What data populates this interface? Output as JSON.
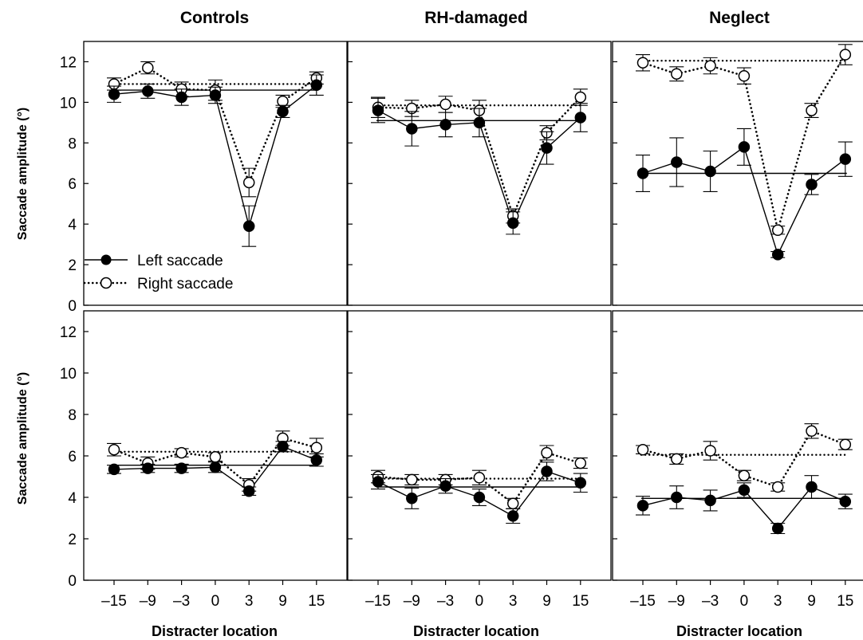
{
  "figure": {
    "column_titles": [
      "Controls",
      "RH-damaged",
      "Neglect"
    ],
    "xlabel": "Distracter location",
    "ylabel": "Saccade amplitude (°)"
  },
  "legend": {
    "left_label": "Left saccade",
    "right_label": "Right saccade"
  },
  "chart_data": {
    "type": "line",
    "x_ticks": [
      "–15",
      "–9",
      "–3",
      "0",
      "3",
      "9",
      "15"
    ],
    "y_ticks": [
      "0",
      "2",
      "4",
      "6",
      "8",
      "10",
      "12"
    ],
    "ylim": [
      0,
      13
    ],
    "grid": false,
    "legend_position": "bottom-left of top-left panel",
    "categories": [
      -15,
      -9,
      -3,
      0,
      3,
      9,
      15
    ],
    "panels": [
      {
        "column": "Controls",
        "row": "top",
        "series": [
          {
            "name": "Left saccade",
            "style": "solid-filled",
            "values": [
              10.4,
              10.55,
              10.25,
              10.35,
              3.9,
              9.55,
              10.85
            ],
            "errors": [
              0.4,
              0.35,
              0.4,
              0.4,
              1.0,
              0.3,
              0.5
            ],
            "baseline": 10.6
          },
          {
            "name": "Right saccade",
            "style": "dotted-open",
            "values": [
              10.9,
              11.7,
              10.65,
              10.6,
              6.05,
              10.05,
              11.2
            ],
            "errors": [
              0.3,
              0.3,
              0.35,
              0.5,
              0.7,
              0.3,
              0.3
            ],
            "baseline": 10.9
          }
        ]
      },
      {
        "column": "RH-damaged",
        "row": "top",
        "series": [
          {
            "name": "Left saccade",
            "style": "solid-filled",
            "values": [
              9.6,
              8.7,
              8.9,
              9.0,
              4.05,
              7.75,
              9.25
            ],
            "errors": [
              0.6,
              0.85,
              0.6,
              0.7,
              0.55,
              0.8,
              0.7
            ],
            "baseline": 9.1
          },
          {
            "name": "Right saccade",
            "style": "dotted-open",
            "values": [
              9.75,
              9.7,
              9.9,
              9.6,
              4.4,
              8.5,
              10.25
            ],
            "errors": [
              0.5,
              0.4,
              0.4,
              0.5,
              0.35,
              0.35,
              0.4
            ],
            "baseline": 9.85
          }
        ]
      },
      {
        "column": "Neglect",
        "row": "top",
        "series": [
          {
            "name": "Left saccade",
            "style": "solid-filled",
            "values": [
              6.5,
              7.05,
              6.6,
              7.8,
              2.5,
              5.95,
              7.2
            ],
            "errors": [
              0.9,
              1.2,
              1.0,
              0.9,
              0.15,
              0.5,
              0.85
            ],
            "baseline": 6.5
          },
          {
            "name": "Right saccade",
            "style": "dotted-open",
            "values": [
              11.95,
              11.4,
              11.8,
              11.3,
              3.7,
              9.6,
              12.35
            ],
            "errors": [
              0.4,
              0.35,
              0.4,
              0.4,
              0.2,
              0.35,
              0.5
            ],
            "baseline": 12.05
          }
        ]
      },
      {
        "column": "Controls",
        "row": "bottom",
        "series": [
          {
            "name": "Left saccade",
            "style": "solid-filled",
            "values": [
              5.35,
              5.4,
              5.4,
              5.45,
              4.3,
              6.45,
              5.8
            ],
            "errors": [
              0.2,
              0.2,
              0.2,
              0.25,
              0.2,
              0.25,
              0.3
            ],
            "baseline": 5.55
          },
          {
            "name": "Right saccade",
            "style": "dotted-open",
            "values": [
              6.3,
              5.65,
              6.15,
              5.95,
              4.6,
              6.85,
              6.4
            ],
            "errors": [
              0.3,
              0.3,
              0.2,
              0.2,
              0.3,
              0.35,
              0.45
            ],
            "baseline": 6.2
          }
        ]
      },
      {
        "column": "RH-damaged",
        "row": "bottom",
        "series": [
          {
            "name": "Left saccade",
            "style": "solid-filled",
            "values": [
              4.75,
              3.95,
              4.55,
              4.0,
              3.1,
              5.25,
              4.7
            ],
            "errors": [
              0.35,
              0.5,
              0.35,
              0.4,
              0.35,
              0.45,
              0.45
            ],
            "baseline": 4.5
          },
          {
            "name": "Right saccade",
            "style": "dotted-open",
            "values": [
              5.0,
              4.85,
              4.85,
              4.95,
              3.7,
              6.15,
              5.65
            ],
            "errors": [
              0.3,
              0.25,
              0.25,
              0.35,
              0.25,
              0.35,
              0.25
            ],
            "baseline": 4.9
          }
        ]
      },
      {
        "column": "Neglect",
        "row": "bottom",
        "series": [
          {
            "name": "Left saccade",
            "style": "solid-filled",
            "values": [
              3.6,
              4.0,
              3.85,
              4.35,
              2.5,
              4.5,
              3.8
            ],
            "errors": [
              0.45,
              0.55,
              0.5,
              0.35,
              0.25,
              0.55,
              0.35
            ],
            "baseline": 3.95
          },
          {
            "name": "Right saccade",
            "style": "dotted-open",
            "values": [
              6.3,
              5.85,
              6.25,
              5.05,
              4.5,
              7.2,
              6.55
            ],
            "errors": [
              0.2,
              0.25,
              0.45,
              0.25,
              0.2,
              0.35,
              0.25
            ],
            "baseline": 6.05
          }
        ]
      }
    ]
  }
}
